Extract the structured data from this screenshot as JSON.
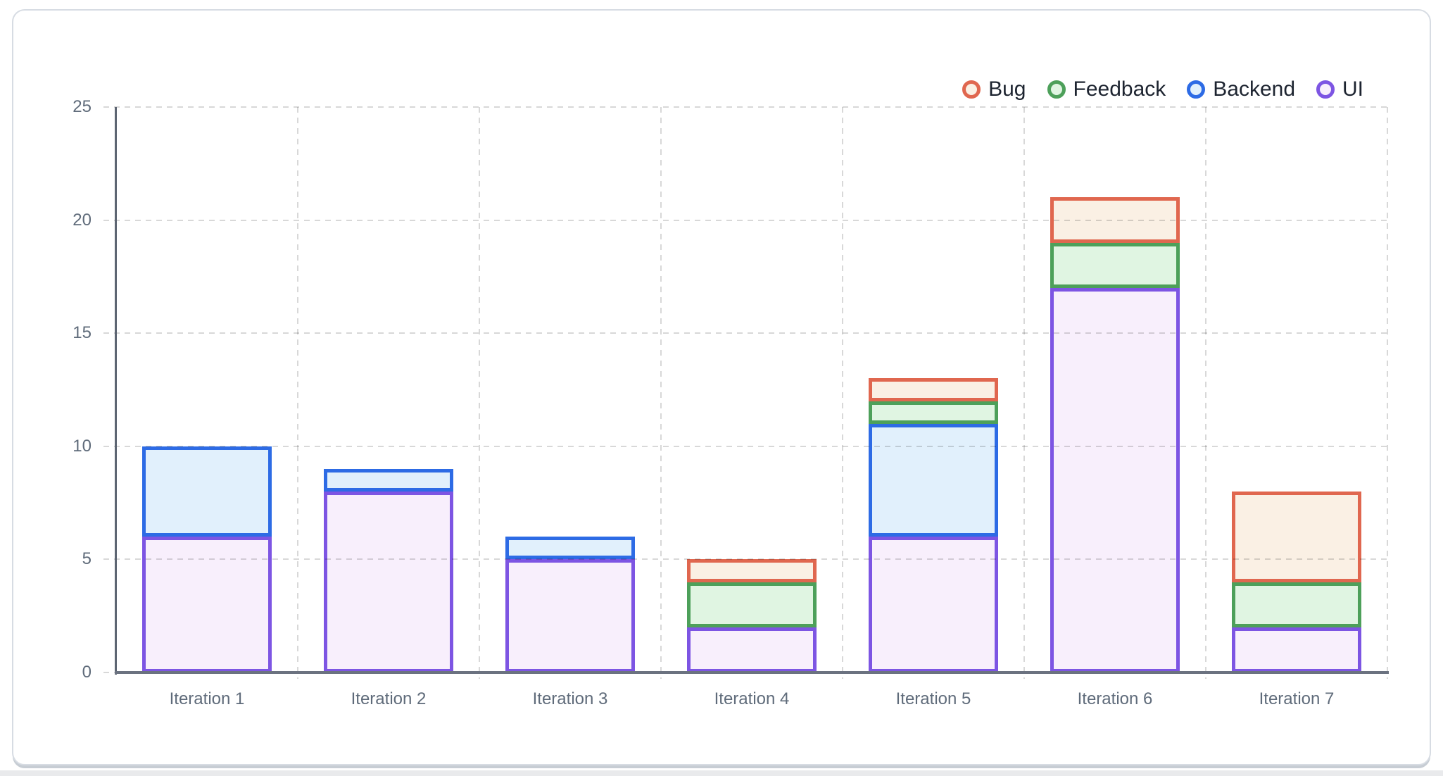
{
  "chart_data": {
    "type": "bar",
    "stacked": true,
    "title": "",
    "xlabel": "",
    "ylabel": "",
    "categories": [
      "Iteration 1",
      "Iteration 2",
      "Iteration 3",
      "Iteration 4",
      "Iteration 5",
      "Iteration 6",
      "Iteration 7"
    ],
    "series": [
      {
        "name": "UI",
        "values": [
          6,
          8,
          5,
          2,
          6,
          17,
          2
        ],
        "border": "#7d55e3",
        "fill": "#f8effc"
      },
      {
        "name": "Backend",
        "values": [
          4,
          1,
          1,
          0,
          5,
          0,
          0
        ],
        "border": "#2d6be5",
        "fill": "#e1f0fc"
      },
      {
        "name": "Feedback",
        "values": [
          0,
          0,
          0,
          2,
          1,
          2,
          2
        ],
        "border": "#4da05a",
        "fill": "#e0f5e2"
      },
      {
        "name": "Bug",
        "values": [
          0,
          0,
          0,
          1,
          1,
          2,
          4
        ],
        "border": "#e0674f",
        "fill": "#faf0e4"
      }
    ],
    "totals": [
      10,
      9,
      6,
      5,
      13,
      21,
      8
    ],
    "legend_order": [
      "Bug",
      "Feedback",
      "Backend",
      "UI"
    ],
    "legend_position": "top-right",
    "ylim": [
      0,
      25
    ],
    "yticks": [
      0,
      5,
      10,
      15,
      20,
      25
    ],
    "grid": true,
    "grid_style": "dashed",
    "colors": {
      "legend_text": "#1d2430",
      "tick_text": "#5f6b7a",
      "gridline": "#d8d8d8",
      "y_axis": "#5d6572",
      "x_axis": "#6b7280"
    }
  }
}
